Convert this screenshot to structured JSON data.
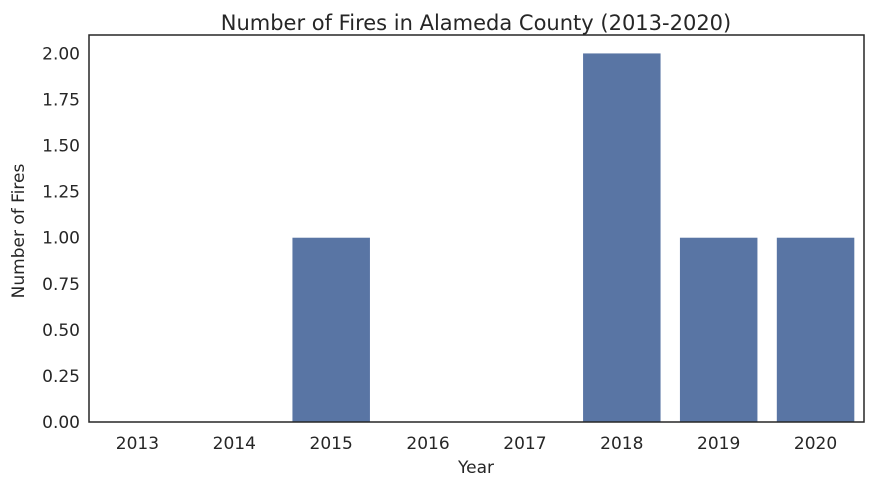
{
  "chart_data": {
    "type": "bar",
    "title": "Number of Fires in Alameda County (2013-2020)",
    "xlabel": "Year",
    "ylabel": "Number of Fires",
    "categories": [
      "2013",
      "2014",
      "2015",
      "2016",
      "2017",
      "2018",
      "2019",
      "2020"
    ],
    "values": [
      0,
      0,
      1,
      0,
      0,
      2,
      1,
      1
    ],
    "ylim": [
      0,
      2.1
    ],
    "yticks": [
      "0.00",
      "0.25",
      "0.50",
      "0.75",
      "1.00",
      "1.25",
      "1.50",
      "1.75",
      "2.00"
    ],
    "grid": false,
    "legend": "none",
    "bar_color": "#5975a4",
    "axis_color": "#262626"
  }
}
